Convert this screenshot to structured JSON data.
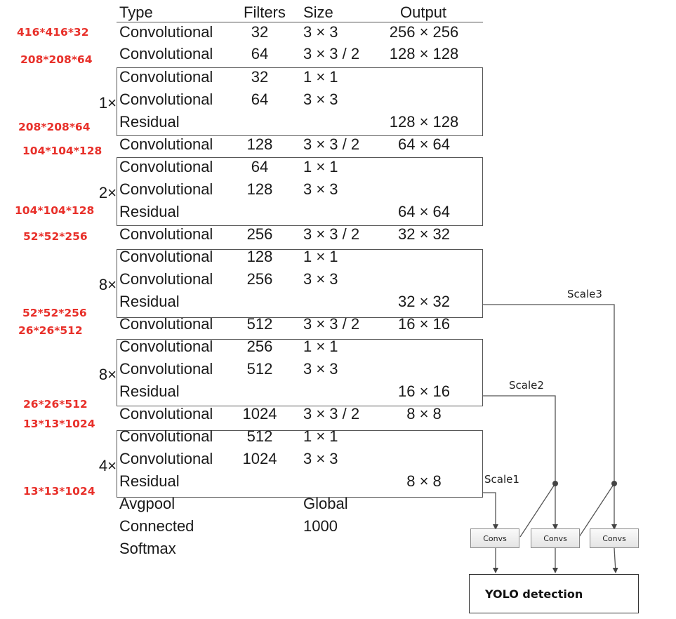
{
  "header": {
    "type": "Type",
    "filters": "Filters",
    "size": "Size",
    "output": "Output"
  },
  "rows": [
    {
      "type": "Convolutional",
      "filters": "32",
      "size": "3 × 3",
      "output": "256 × 256"
    },
    {
      "type": "Convolutional",
      "filters": "64",
      "size": "3 × 3 / 2",
      "output": "128 × 128"
    },
    {
      "type": "Convolutional",
      "filters": "32",
      "size": "1 × 1",
      "output": ""
    },
    {
      "type": "Convolutional",
      "filters": "64",
      "size": "3 × 3",
      "output": ""
    },
    {
      "type": "Residual",
      "filters": "",
      "size": "",
      "output": "128 × 128"
    },
    {
      "type": "Convolutional",
      "filters": "128",
      "size": "3 × 3 / 2",
      "output": "64 × 64"
    },
    {
      "type": "Convolutional",
      "filters": "64",
      "size": "1 × 1",
      "output": ""
    },
    {
      "type": "Convolutional",
      "filters": "128",
      "size": "3 × 3",
      "output": ""
    },
    {
      "type": "Residual",
      "filters": "",
      "size": "",
      "output": "64 × 64"
    },
    {
      "type": "Convolutional",
      "filters": "256",
      "size": "3 × 3 / 2",
      "output": "32 × 32"
    },
    {
      "type": "Convolutional",
      "filters": "128",
      "size": "1 × 1",
      "output": ""
    },
    {
      "type": "Convolutional",
      "filters": "256",
      "size": "3 × 3",
      "output": ""
    },
    {
      "type": "Residual",
      "filters": "",
      "size": "",
      "output": "32 × 32"
    },
    {
      "type": "Convolutional",
      "filters": "512",
      "size": "3 × 3 / 2",
      "output": "16 × 16"
    },
    {
      "type": "Convolutional",
      "filters": "256",
      "size": "1 × 1",
      "output": ""
    },
    {
      "type": "Convolutional",
      "filters": "512",
      "size": "3 × 3",
      "output": ""
    },
    {
      "type": "Residual",
      "filters": "",
      "size": "",
      "output": "16 × 16"
    },
    {
      "type": "Convolutional",
      "filters": "1024",
      "size": "3 × 3 / 2",
      "output": "8 × 8"
    },
    {
      "type": "Convolutional",
      "filters": "512",
      "size": "1 × 1",
      "output": ""
    },
    {
      "type": "Convolutional",
      "filters": "1024",
      "size": "3 × 3",
      "output": ""
    },
    {
      "type": "Residual",
      "filters": "",
      "size": "",
      "output": "8 × 8"
    },
    {
      "type": "Avgpool",
      "filters": "",
      "size": "Global",
      "output": ""
    },
    {
      "type": "Connected",
      "filters": "",
      "size": "1000",
      "output": ""
    },
    {
      "type": "Softmax",
      "filters": "",
      "size": "",
      "output": ""
    }
  ],
  "repeats": [
    "1×",
    "2×",
    "8×",
    "8×",
    "4×"
  ],
  "dims": [
    "416*416*32",
    "208*208*64",
    "208*208*64",
    "104*104*128",
    "104*104*128",
    "52*52*256",
    "52*52*256",
    "26*26*512",
    "26*26*512",
    "13*13*1024",
    "13*13*1024"
  ],
  "scales": [
    "Scale3",
    "Scale2",
    "Scale1"
  ],
  "convs": [
    "Convs",
    "Convs",
    "Convs"
  ],
  "yolo": "YOLO detection",
  "colors": {
    "dim_label": "#e8302a",
    "text": "#1a1a1a",
    "line": "#555555"
  }
}
